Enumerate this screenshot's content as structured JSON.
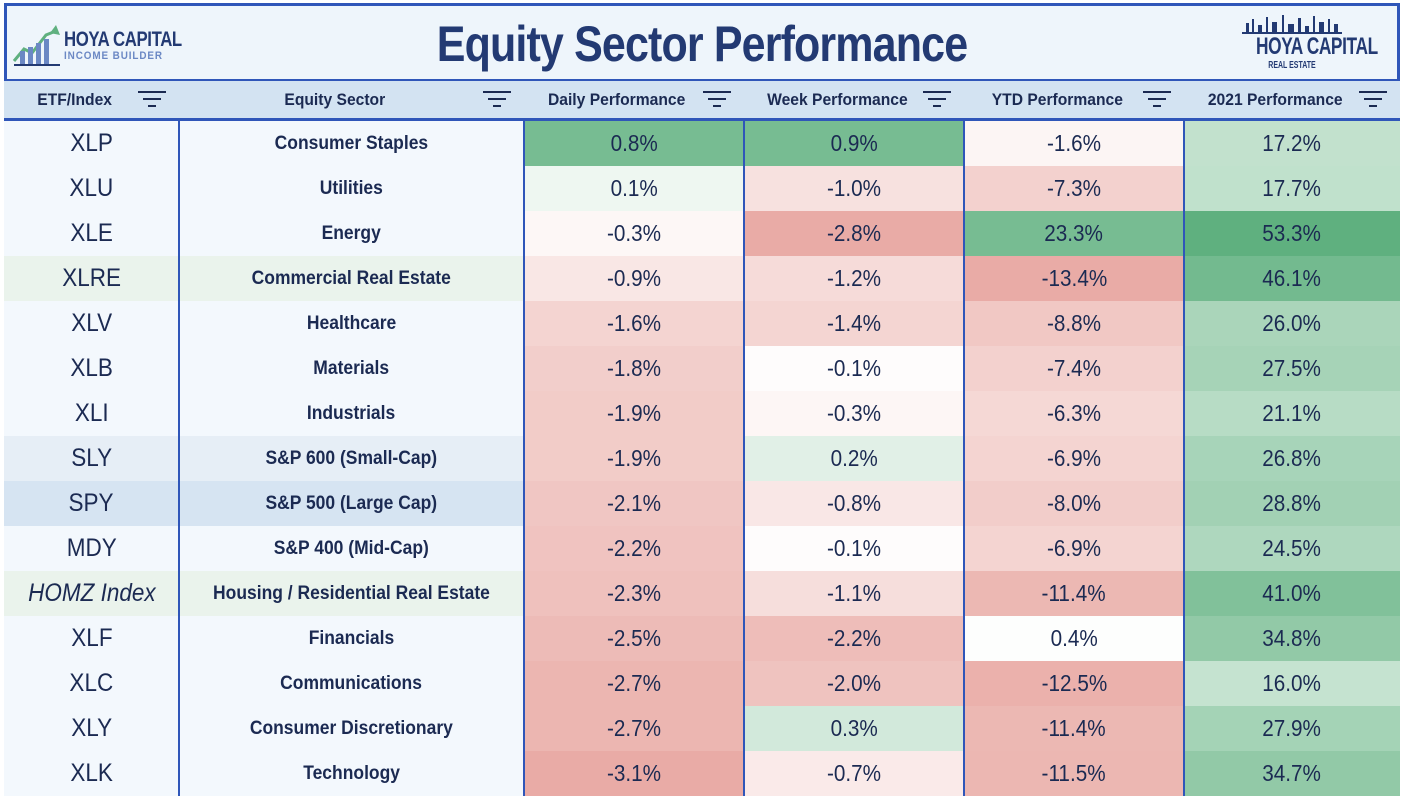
{
  "title": "Equity Sector Performance",
  "logo_left": {
    "main": "HOYA CAPITAL",
    "sub": "INCOME BUILDER"
  },
  "logo_right": {
    "main": "HOYA CAPITAL",
    "sub": "REAL ESTATE"
  },
  "columns": [
    "ETF/Index",
    "Equity Sector",
    "Daily Performance",
    "Week Performance",
    "YTD Performance",
    "2021 Performance"
  ],
  "chart_data": {
    "type": "table",
    "columns": [
      "ETF/Index",
      "Equity Sector",
      "Daily Performance",
      "Week Performance",
      "YTD Performance",
      "2021 Performance"
    ],
    "rows": [
      {
        "etf": "XLP",
        "sector": "Consumer Staples",
        "daily": "0.8%",
        "week": "0.9%",
        "ytd": "-1.6%",
        "y2021": "17.2%"
      },
      {
        "etf": "XLU",
        "sector": "Utilities",
        "daily": "0.1%",
        "week": "-1.0%",
        "ytd": "-7.3%",
        "y2021": "17.7%"
      },
      {
        "etf": "XLE",
        "sector": "Energy",
        "daily": "-0.3%",
        "week": "-2.8%",
        "ytd": "23.3%",
        "y2021": "53.3%"
      },
      {
        "etf": "XLRE",
        "sector": "Commercial Real Estate",
        "daily": "-0.9%",
        "week": "-1.2%",
        "ytd": "-13.4%",
        "y2021": "46.1%"
      },
      {
        "etf": "XLV",
        "sector": "Healthcare",
        "daily": "-1.6%",
        "week": "-1.4%",
        "ytd": "-8.8%",
        "y2021": "26.0%"
      },
      {
        "etf": "XLB",
        "sector": "Materials",
        "daily": "-1.8%",
        "week": "-0.1%",
        "ytd": "-7.4%",
        "y2021": "27.5%"
      },
      {
        "etf": "XLI",
        "sector": "Industrials",
        "daily": "-1.9%",
        "week": "-0.3%",
        "ytd": "-6.3%",
        "y2021": "21.1%"
      },
      {
        "etf": "SLY",
        "sector": "S&P 600 (Small-Cap)",
        "daily": "-1.9%",
        "week": "0.2%",
        "ytd": "-6.9%",
        "y2021": "26.8%"
      },
      {
        "etf": "SPY",
        "sector": "S&P 500 (Large Cap)",
        "daily": "-2.1%",
        "week": "-0.8%",
        "ytd": "-8.0%",
        "y2021": "28.8%"
      },
      {
        "etf": "MDY",
        "sector": "S&P 400 (Mid-Cap)",
        "daily": "-2.2%",
        "week": "-0.1%",
        "ytd": "-6.9%",
        "y2021": "24.5%"
      },
      {
        "etf": "HOMZ Index",
        "sector": "Housing / Residential Real Estate",
        "daily": "-2.3%",
        "week": "-1.1%",
        "ytd": "-11.4%",
        "y2021": "41.0%"
      },
      {
        "etf": "XLF",
        "sector": "Financials",
        "daily": "-2.5%",
        "week": "-2.2%",
        "ytd": "0.4%",
        "y2021": "34.8%"
      },
      {
        "etf": "XLC",
        "sector": "Communications",
        "daily": "-2.7%",
        "week": "-2.0%",
        "ytd": "-12.5%",
        "y2021": "16.0%"
      },
      {
        "etf": "XLY",
        "sector": "Consumer Discretionary",
        "daily": "-2.7%",
        "week": "0.3%",
        "ytd": "-11.4%",
        "y2021": "27.9%"
      },
      {
        "etf": "XLK",
        "sector": "Technology",
        "daily": "-3.1%",
        "week": "-0.7%",
        "ytd": "-11.5%",
        "y2021": "34.7%"
      }
    ]
  },
  "colors": {
    "border": "#2f56b9",
    "header_bg": "#d3e3f2",
    "title": "#233a73",
    "text": "#1b2a52",
    "positive": "#5fb07f",
    "negative": "#e28f88",
    "neutral": "#ffffff",
    "label_bg": "#f3f8fd",
    "label_bg_alt_green": "#eaf3ec",
    "label_bg_alt_blue": "#d6e4f2"
  },
  "header_icon": "filter-lines-icon"
}
